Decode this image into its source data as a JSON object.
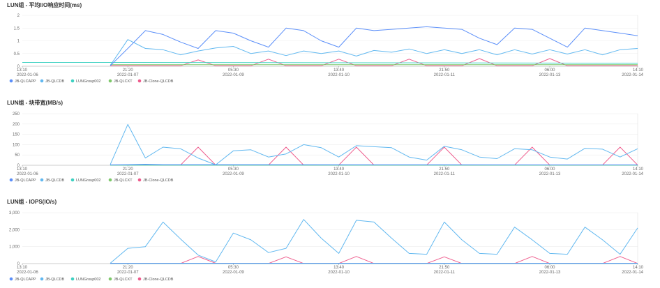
{
  "colors": {
    "JB-QLCAPP": "#5b8ff9",
    "JB-QLCDB": "#61b8f0",
    "LUNGroup002": "#3fd1c2",
    "JB-QLCXT": "#7ec86b",
    "JB-Clone-QLCDB": "#ee5b8c"
  },
  "chart_data": [
    {
      "type": "line",
      "title": "LUN组 - 平均I/O响应时间(ms)",
      "ylim": [
        0,
        2
      ],
      "yticks": [
        "0",
        "0.5",
        "1",
        "1.5",
        "2"
      ],
      "xlim": [
        0,
        35
      ],
      "xticks": [
        {
          "x": 0,
          "time": "13:10",
          "date": "2022-01-06"
        },
        {
          "x": 6,
          "time": "21:20",
          "date": "2022-01-07"
        },
        {
          "x": 12,
          "time": "05:30",
          "date": "2022-01-09"
        },
        {
          "x": 18,
          "time": "13:40",
          "date": "2022-01-10"
        },
        {
          "x": 24,
          "time": "21:50",
          "date": "2022-01-11"
        },
        {
          "x": 30,
          "time": "06:00",
          "date": "2022-01-13"
        },
        {
          "x": 35,
          "time": "14:10",
          "date": "2022-01-14"
        }
      ],
      "grid": true,
      "legend": "bottom-left",
      "series": [
        {
          "name": "JB-QLCAPP",
          "x": [
            5,
            6,
            7,
            8,
            9,
            10,
            11,
            12,
            13,
            14,
            15,
            16,
            17,
            18,
            19,
            20,
            21,
            22,
            23,
            24,
            25,
            26,
            27,
            28,
            29,
            30,
            31,
            32,
            33,
            34,
            35
          ],
          "values": [
            0.02,
            0.7,
            1.4,
            1.25,
            0.95,
            0.7,
            1.4,
            1.3,
            1.0,
            0.75,
            1.5,
            1.4,
            1.0,
            0.75,
            1.5,
            1.4,
            1.45,
            1.5,
            1.55,
            1.5,
            1.45,
            1.1,
            0.85,
            1.5,
            1.45,
            1.1,
            0.75,
            1.5,
            1.4,
            1.3,
            1.2
          ]
        },
        {
          "name": "JB-QLCDB",
          "x": [
            5,
            6,
            7,
            8,
            9,
            10,
            11,
            12,
            13,
            14,
            15,
            16,
            17,
            18,
            19,
            20,
            21,
            22,
            23,
            24,
            25,
            26,
            27,
            28,
            29,
            30,
            31,
            32,
            33,
            34,
            35
          ],
          "values": [
            0.03,
            1.05,
            0.7,
            0.65,
            0.45,
            0.6,
            0.72,
            0.78,
            0.5,
            0.6,
            0.42,
            0.6,
            0.5,
            0.6,
            0.4,
            0.62,
            0.55,
            0.68,
            0.5,
            0.65,
            0.5,
            0.65,
            0.45,
            0.65,
            0.48,
            0.65,
            0.48,
            0.65,
            0.45,
            0.65,
            0.7
          ]
        },
        {
          "name": "LUNGroup002",
          "x": [
            0,
            5,
            6,
            35
          ],
          "values": [
            0.15,
            0.15,
            0.15,
            0.12
          ]
        },
        {
          "name": "JB-QLCXT",
          "x": [
            5,
            6,
            35
          ],
          "values": [
            0.06,
            0.06,
            0.06
          ]
        },
        {
          "name": "JB-Clone-QLCDB",
          "x": [
            5,
            8,
            9,
            10,
            11,
            12,
            13,
            14,
            15,
            16,
            17,
            18,
            19,
            20,
            21,
            22,
            23,
            24,
            25,
            26,
            27,
            28,
            29,
            30,
            31,
            32,
            33,
            34,
            35
          ],
          "values": [
            0.02,
            0.02,
            0.02,
            0.25,
            0.02,
            0.02,
            0.02,
            0.28,
            0.02,
            0.02,
            0.02,
            0.28,
            0.02,
            0.02,
            0.02,
            0.28,
            0.02,
            0.02,
            0.02,
            0.3,
            0.02,
            0.02,
            0.02,
            0.3,
            0.02,
            0.02,
            0.02,
            0.02,
            0.02
          ]
        }
      ]
    },
    {
      "type": "line",
      "title": "LUN组 - 块带宽(MB/s)",
      "ylim": [
        0,
        250
      ],
      "yticks": [
        "0",
        "50",
        "100",
        "150",
        "200",
        "250"
      ],
      "xlim": [
        0,
        35
      ],
      "xticks": [
        {
          "x": 0,
          "time": "13:10",
          "date": "2022-01-06"
        },
        {
          "x": 6,
          "time": "21:20",
          "date": "2022-01-07"
        },
        {
          "x": 12,
          "time": "05:30",
          "date": "2022-01-09"
        },
        {
          "x": 18,
          "time": "13:40",
          "date": "2022-01-10"
        },
        {
          "x": 24,
          "time": "21:50",
          "date": "2022-01-11"
        },
        {
          "x": 30,
          "time": "06:00",
          "date": "2022-01-13"
        },
        {
          "x": 35,
          "time": "14:10",
          "date": "2022-01-14"
        }
      ],
      "grid": true,
      "legend": "bottom-left",
      "series": [
        {
          "name": "JB-QLCAPP",
          "x": [
            5,
            6,
            7,
            8,
            35
          ],
          "values": [
            2,
            3,
            5,
            3,
            2
          ]
        },
        {
          "name": "JB-QLCDB",
          "x": [
            5,
            6,
            7,
            8,
            9,
            10,
            11,
            12,
            13,
            14,
            15,
            16,
            17,
            18,
            19,
            20,
            21,
            22,
            23,
            24,
            25,
            26,
            27,
            28,
            29,
            30,
            31,
            32,
            33,
            34,
            35
          ],
          "values": [
            3,
            198,
            35,
            88,
            80,
            35,
            2,
            70,
            75,
            40,
            55,
            100,
            85,
            40,
            95,
            90,
            85,
            40,
            25,
            92,
            75,
            40,
            32,
            80,
            75,
            40,
            30,
            82,
            78,
            40,
            80
          ]
        },
        {
          "name": "LUNGroup002",
          "x": [
            5,
            35
          ],
          "values": [
            1,
            1
          ]
        },
        {
          "name": "JB-QLCXT",
          "x": [
            5,
            35
          ],
          "values": [
            0.5,
            0.5
          ]
        },
        {
          "name": "JB-Clone-QLCDB",
          "x": [
            5,
            9,
            10,
            11,
            14,
            15,
            16,
            18,
            19,
            20,
            23,
            24,
            25,
            28,
            29,
            30,
            33,
            34,
            35
          ],
          "values": [
            1,
            1,
            88,
            1,
            1,
            88,
            1,
            1,
            88,
            1,
            1,
            88,
            1,
            1,
            88,
            1,
            1,
            88,
            1
          ]
        }
      ]
    },
    {
      "type": "line",
      "title": "LUN组 - IOPS(IO/s)",
      "ylim": [
        0,
        3000
      ],
      "yticks": [
        "0",
        "1,000",
        "2,000",
        "3,000"
      ],
      "xlim": [
        0,
        35
      ],
      "xticks": [
        {
          "x": 0,
          "time": "13:10",
          "date": "2022-01-06"
        },
        {
          "x": 6,
          "time": "21:20",
          "date": "2022-01-07"
        },
        {
          "x": 12,
          "time": "05:30",
          "date": "2022-01-09"
        },
        {
          "x": 18,
          "time": "13:40",
          "date": "2022-01-10"
        },
        {
          "x": 24,
          "time": "21:50",
          "date": "2022-01-11"
        },
        {
          "x": 30,
          "time": "06:00",
          "date": "2022-01-13"
        },
        {
          "x": 35,
          "time": "14:10",
          "date": "2022-01-14"
        }
      ],
      "grid": true,
      "legend": "bottom-left",
      "series": [
        {
          "name": "JB-QLCAPP",
          "x": [
            5,
            35
          ],
          "values": [
            15,
            15
          ]
        },
        {
          "name": "JB-QLCDB",
          "x": [
            5,
            6,
            7,
            8,
            9,
            10,
            11,
            12,
            13,
            14,
            15,
            16,
            17,
            18,
            19,
            20,
            21,
            22,
            23,
            24,
            25,
            26,
            27,
            28,
            29,
            30,
            31,
            32,
            33,
            34,
            35
          ],
          "values": [
            20,
            900,
            1000,
            2450,
            1450,
            500,
            100,
            1800,
            1400,
            650,
            900,
            2600,
            1500,
            600,
            2550,
            2450,
            1500,
            600,
            550,
            2450,
            1400,
            600,
            550,
            2150,
            1400,
            600,
            550,
            2150,
            1400,
            550,
            2100
          ]
        },
        {
          "name": "LUNGroup002",
          "x": [
            5,
            35
          ],
          "values": [
            10,
            10
          ]
        },
        {
          "name": "JB-QLCXT",
          "x": [
            5,
            35
          ],
          "values": [
            5,
            5
          ]
        },
        {
          "name": "JB-Clone-QLCDB",
          "x": [
            5,
            9,
            10,
            11,
            12,
            14,
            15,
            16,
            18,
            19,
            20,
            23,
            24,
            25,
            28,
            29,
            30,
            33,
            34,
            35
          ],
          "values": [
            10,
            10,
            420,
            20,
            10,
            10,
            400,
            10,
            10,
            420,
            10,
            10,
            400,
            10,
            10,
            420,
            10,
            10,
            420,
            10
          ]
        }
      ]
    }
  ]
}
